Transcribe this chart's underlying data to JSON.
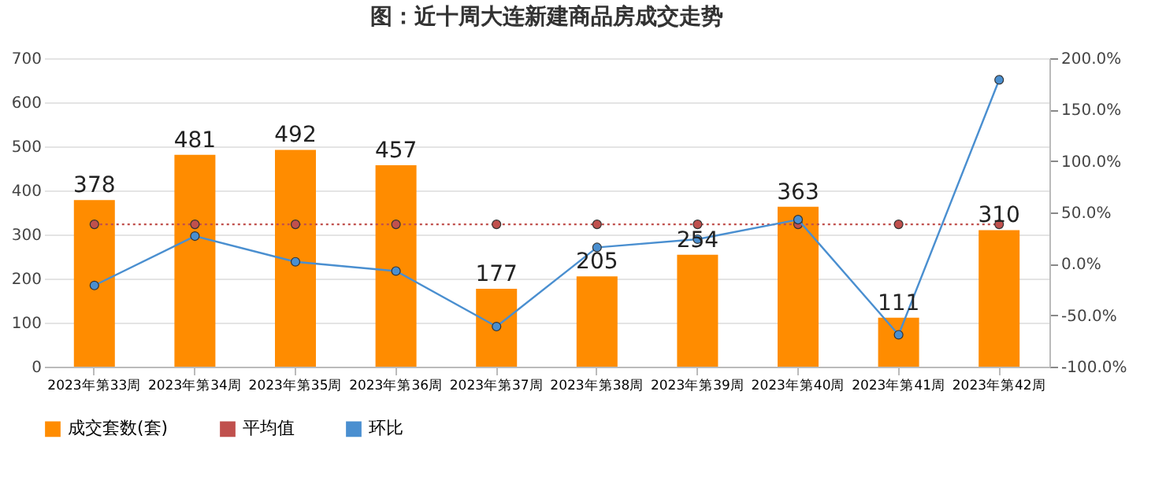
{
  "chart_data": {
    "type": "bar",
    "title": "图：近十周大连新建商品房成交走势",
    "categories": [
      "2023年第33周",
      "2023年第34周",
      "2023年第35周",
      "2023年第36周",
      "2023年第37周",
      "2023年第38周",
      "2023年第39周",
      "2023年第40周",
      "2023年第41周",
      "2023年第42周"
    ],
    "series": [
      {
        "name": "成交套数(套)",
        "color": "#ff8c00",
        "values": [
          378,
          481,
          492,
          457,
          177,
          205,
          254,
          363,
          111,
          310
        ],
        "value_labels": [
          "378",
          "481",
          "492",
          "457",
          "177",
          "205",
          "254",
          "363",
          "111",
          "310"
        ]
      },
      {
        "name": "平均值",
        "type": "line",
        "color": "#c0504d",
        "line_style": "dotted",
        "values": [
          323,
          323,
          323,
          323,
          323,
          323,
          323,
          323,
          323,
          323
        ]
      },
      {
        "name": "环比",
        "type": "line",
        "axis": "y2",
        "color": "#4a8fd0",
        "line_style": "solid",
        "values": [
          -21,
          27,
          2,
          -7,
          -61,
          16,
          24,
          43,
          -69,
          179
        ]
      }
    ],
    "ylim": [
      0,
      700
    ],
    "yticks": [
      0,
      100,
      200,
      300,
      400,
      500,
      600,
      700
    ],
    "y2lim": [
      -100,
      200
    ],
    "y2ticks": [
      {
        "value": -100,
        "label": "-100.0%"
      },
      {
        "value": -50,
        "label": "-50.0%"
      },
      {
        "value": 0,
        "label": "0.0%"
      },
      {
        "value": 50,
        "label": "50.0%"
      },
      {
        "value": 100,
        "label": "100.0%"
      },
      {
        "value": 150,
        "label": "150.0%"
      },
      {
        "value": 200,
        "label": "200.0%"
      }
    ],
    "grid": "y",
    "legend": "bottom",
    "marker": "circle"
  }
}
